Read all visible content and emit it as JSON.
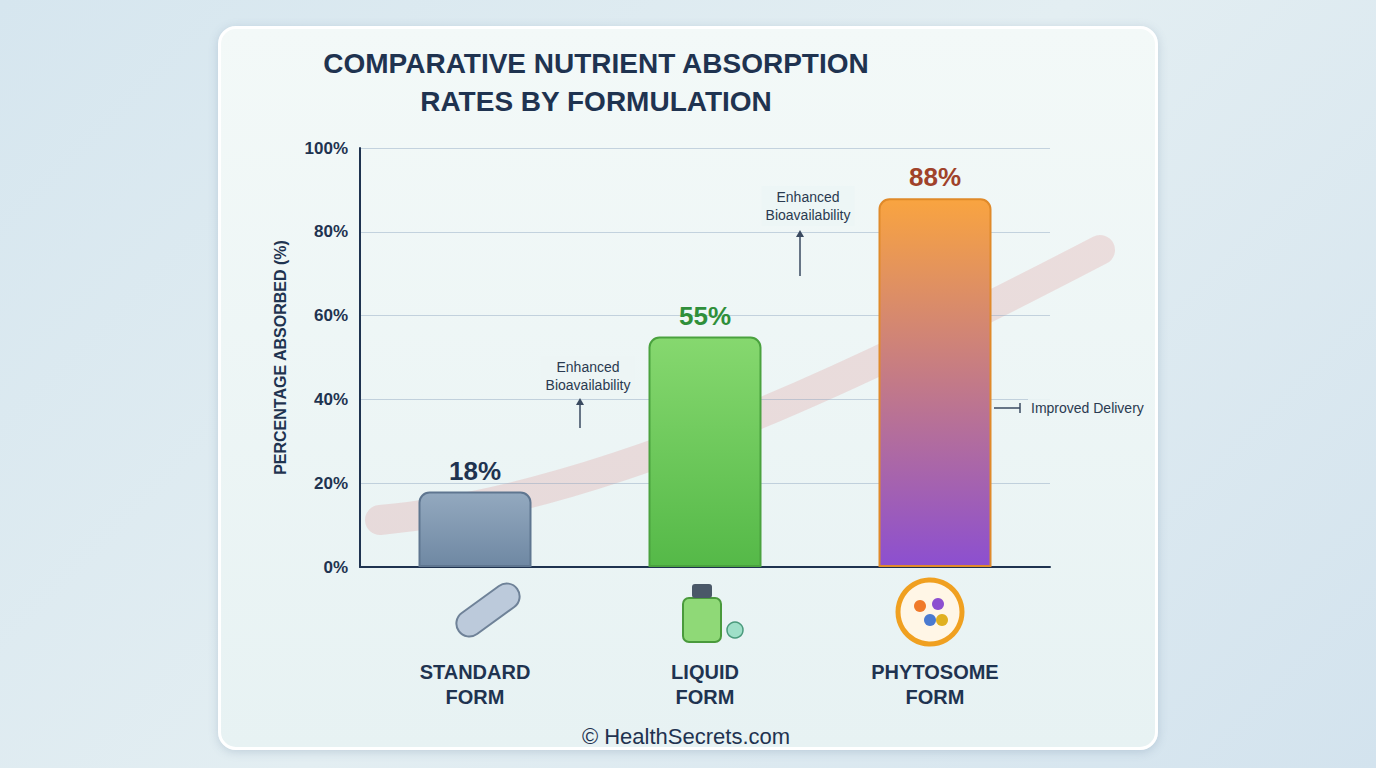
{
  "chart_data": {
    "type": "bar",
    "title": "COMPARATIVE NUTRIENT ABSORPTION RATES BY FORMULATION",
    "y_label": "PERCENTAGE ABSORBED (%)",
    "categories": [
      "STANDARD FORM",
      "LIQUID FORM",
      "PHYTOSOME FORM"
    ],
    "values": [
      18,
      55,
      88
    ],
    "value_labels": [
      "18%",
      "55%",
      "88%"
    ],
    "data_labels": true,
    "colors": [
      "#93a9bf",
      "#86d86f",
      "#f9a440"
    ],
    "ylim": [
      0,
      100
    ],
    "yticks": [
      {
        "value": 0,
        "label": "0%"
      },
      {
        "value": 20,
        "label": "20%"
      },
      {
        "value": 40,
        "label": "40%"
      },
      {
        "value": 60,
        "label": "60%"
      },
      {
        "value": 80,
        "label": "80%"
      },
      {
        "value": 100,
        "label": "100%"
      }
    ],
    "grid": true,
    "annotations": [
      "Enhanced Bioavailability",
      "Enhanced Bioavailability",
      "Improved Delivery"
    ],
    "source": "© HealthSecrets.com"
  }
}
